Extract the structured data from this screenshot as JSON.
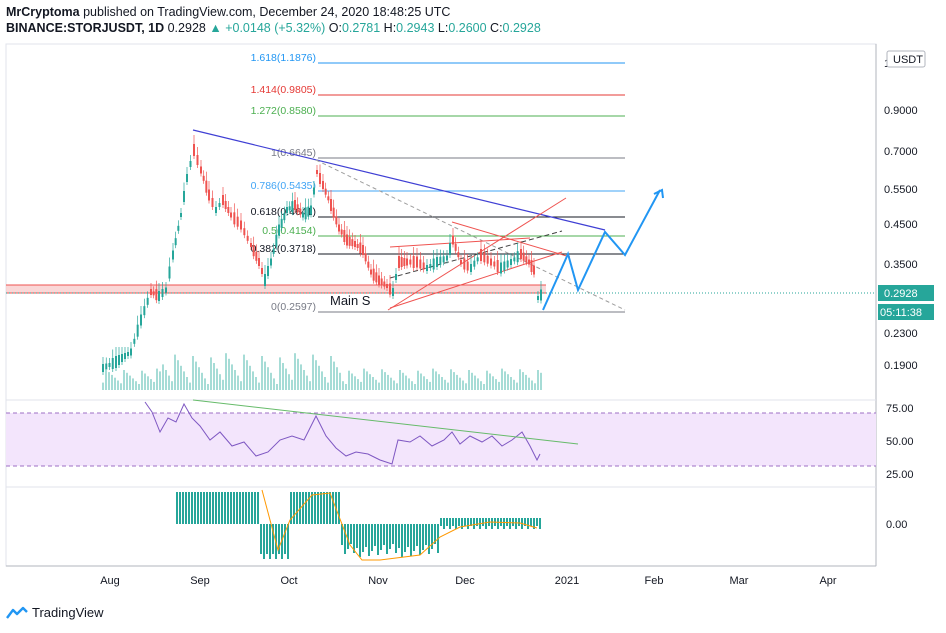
{
  "header": {
    "author": "MrCryptoma",
    "published": "published on TradingView.com, December 24, 2020 18:48:25 UTC",
    "symbol": "BINANCE:STORJUSDT, 1D",
    "price": "0.2928",
    "change": "+0.0148 (+5.32%)",
    "o_label": "O:",
    "o": "0.2781",
    "h_label": "H:",
    "h": "0.2943",
    "l_label": "L:",
    "l": "0.2600",
    "c_label": "C:",
    "c": "0.2928"
  },
  "currency_badge": "USDT",
  "price_axis": [
    "0.9000",
    "0.7000",
    "0.5500",
    "0.4500",
    "0.3500",
    "0.2300",
    "0.1900"
  ],
  "price_axis_top": "1",
  "price_tag": "0.2928",
  "countdown_tag": "05:11:38",
  "rsi_axis": [
    "75.00",
    "50.00",
    "25.00"
  ],
  "macd_axis": [
    "0.00"
  ],
  "time_axis": [
    "Aug",
    "Sep",
    "Oct",
    "Nov",
    "Dec",
    "2021",
    "Feb",
    "Mar",
    "Apr"
  ],
  "fib_levels": [
    {
      "label": "1.618(1.1876)",
      "color": "#2196f3"
    },
    {
      "label": "1.414(0.9805)",
      "color": "#e53935"
    },
    {
      "label": "1.272(0.8580)",
      "color": "#4caf50"
    },
    {
      "label": "1(0.6645)",
      "color": "#787b86"
    },
    {
      "label": "0.786(0.5435)",
      "color": "#42a5f5"
    },
    {
      "label": "0.618(0.4641)",
      "color": "#131722"
    },
    {
      "label": "0.5(0.4154)",
      "color": "#4caf50"
    },
    {
      "label": "0.382(0.3718)",
      "color": "#131722"
    },
    {
      "label": "0(0.2597)",
      "color": "#787b86"
    }
  ],
  "annotation": "Main S",
  "footer": {
    "brand": "TradingView"
  },
  "colors": {
    "up": "#26a69a",
    "down": "#ef5350",
    "rsi": "#7e57c2",
    "macd_hist": "#26a69a",
    "projection": "#2196f3"
  }
}
